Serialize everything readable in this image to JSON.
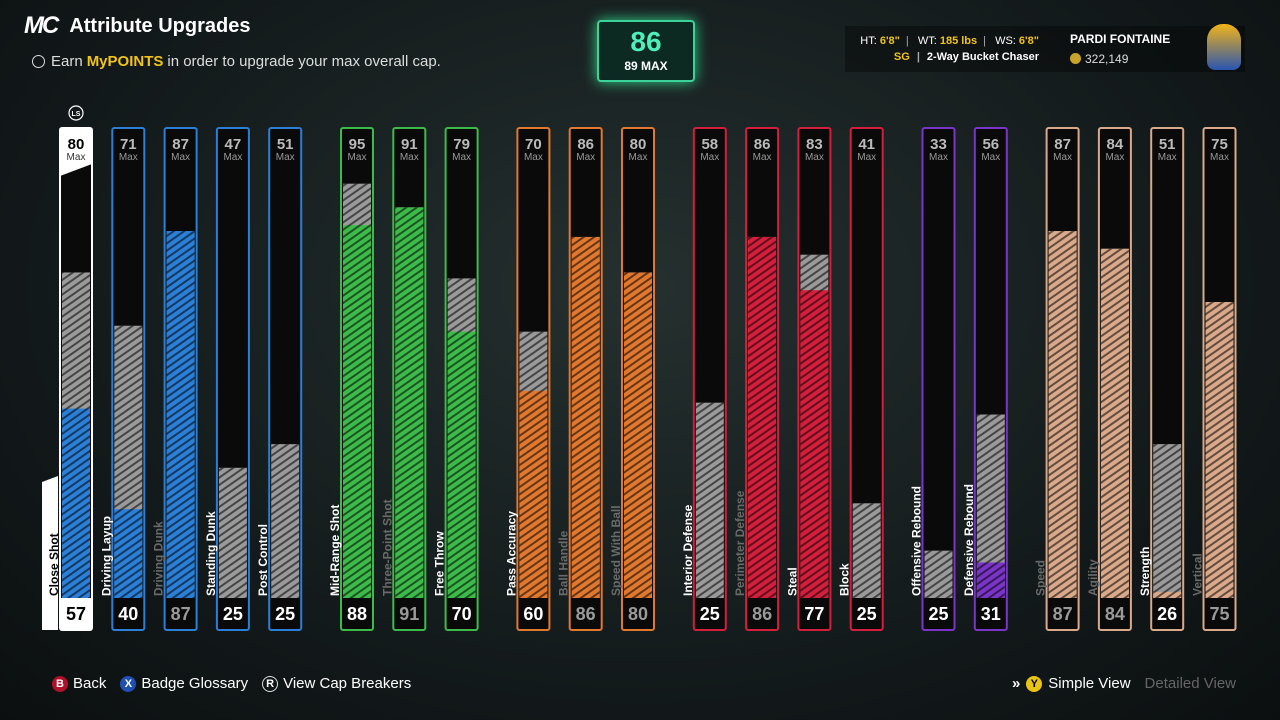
{
  "header": {
    "logo": "MC",
    "title": "Attribute Upgrades",
    "subtitle_pre": "Earn",
    "subtitle_highlight": "MyPOINTS",
    "subtitle_post": "in order to upgrade your max overall cap."
  },
  "overall": {
    "value": 86,
    "max_label": "89 MAX"
  },
  "player": {
    "ht_label": "HT:",
    "ht": "6'8\"",
    "wt_label": "WT:",
    "wt": "185 lbs",
    "ws_label": "WS:",
    "ws": "6'8\"",
    "position": "SG",
    "archetype": "2-Way Bucket Chaser",
    "name": "PARDI FONTAINE",
    "vc": "322,149"
  },
  "attributes": {
    "ylim": [
      25,
      99
    ],
    "max_label": "Max",
    "selector_hint": "LS",
    "selected_index": 0,
    "groups": [
      {
        "color": "#2b7fd6",
        "items": [
          {
            "name": "Close Shot",
            "current": 57,
            "max": 80
          },
          {
            "name": "Driving Layup",
            "current": 40,
            "max": 71
          },
          {
            "name": "Driving Dunk",
            "current": 87,
            "max": 87
          },
          {
            "name": "Standing Dunk",
            "current": 25,
            "max": 47
          },
          {
            "name": "Post Control",
            "current": 25,
            "max": 51
          }
        ]
      },
      {
        "color": "#3dbb4a",
        "items": [
          {
            "name": "Mid-Range Shot",
            "current": 88,
            "max": 95
          },
          {
            "name": "Three-Point Shot",
            "current": 91,
            "max": 91
          },
          {
            "name": "Free Throw",
            "current": 70,
            "max": 79
          }
        ]
      },
      {
        "color": "#e0782f",
        "items": [
          {
            "name": "Pass Accuracy",
            "current": 60,
            "max": 70
          },
          {
            "name": "Ball Handle",
            "current": 86,
            "max": 86
          },
          {
            "name": "Speed With Ball",
            "current": 80,
            "max": 80
          }
        ]
      },
      {
        "color": "#d41f3c",
        "items": [
          {
            "name": "Interior Defense",
            "current": 25,
            "max": 58
          },
          {
            "name": "Perimeter Defense",
            "current": 86,
            "max": 86
          },
          {
            "name": "Steal",
            "current": 77,
            "max": 83
          },
          {
            "name": "Block",
            "current": 25,
            "max": 41
          }
        ]
      },
      {
        "color": "#7a35c8",
        "items": [
          {
            "name": "Offensive Rebound",
            "current": 25,
            "max": 33
          },
          {
            "name": "Defensive Rebound",
            "current": 31,
            "max": 56
          }
        ]
      },
      {
        "color": "#d9a98a",
        "items": [
          {
            "name": "Speed",
            "current": 87,
            "max": 87
          },
          {
            "name": "Agility",
            "current": 84,
            "max": 84
          },
          {
            "name": "Strength",
            "current": 26,
            "max": 51
          },
          {
            "name": "Vertical",
            "current": 75,
            "max": 75
          }
        ]
      }
    ]
  },
  "footer": {
    "back_key": "B",
    "back": "Back",
    "glossary_key": "X",
    "glossary": "Badge Glossary",
    "cap_key": "R",
    "cap": "View Cap Breakers",
    "view_key": "Y",
    "view_active": "Simple View",
    "view_inactive": "Detailed View"
  }
}
